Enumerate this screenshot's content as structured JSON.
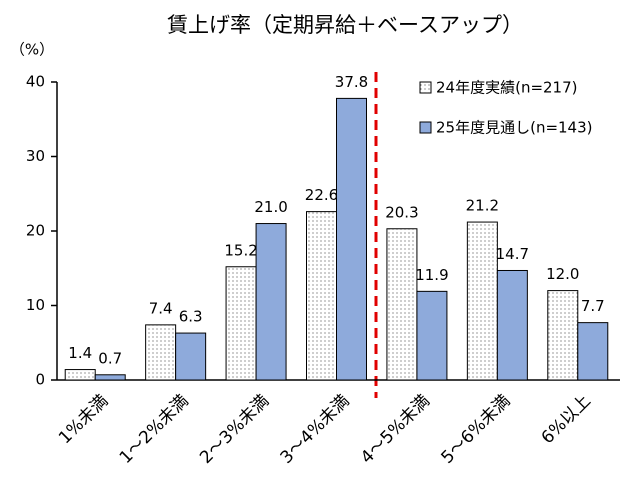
{
  "chart_data": {
    "type": "bar",
    "title": "賃上げ率（定期昇給＋ベースアップ）",
    "y_unit_label": "（%）",
    "categories": [
      "1%未満",
      "1～2%未満",
      "2～3%未満",
      "3～4%未満",
      "4～5%未満",
      "5～6%未満",
      "6%以上"
    ],
    "series": [
      {
        "name": "24年度実績(n=217)",
        "color": "#ffffff",
        "pattern": "dots",
        "values": [
          1.4,
          7.4,
          15.2,
          22.6,
          20.3,
          21.2,
          12.0
        ],
        "value_labels": [
          "1.4",
          "7.4",
          "15.2",
          "22.6",
          "20.3",
          "21.2",
          "12.0"
        ]
      },
      {
        "name": "25年度見通し(n=143)",
        "color": "#8eaadb",
        "values": [
          0.7,
          6.3,
          21.0,
          37.8,
          11.9,
          14.7,
          7.7
        ],
        "value_labels": [
          "0.7",
          "6.3",
          "21.0",
          "37.8",
          "11.9",
          "14.7",
          "7.7"
        ]
      }
    ],
    "ylim": [
      0,
      40
    ],
    "yticks": [
      0,
      10,
      20,
      30,
      40
    ],
    "grid": false,
    "legend": "upper right"
  }
}
